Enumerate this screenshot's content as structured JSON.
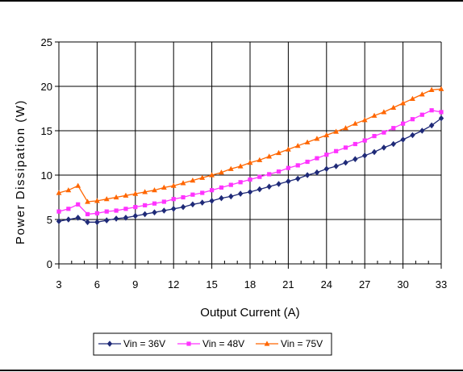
{
  "chart_data": {
    "type": "line",
    "xlabel": "Output Current (A)",
    "ylabel": "Power Dissipation (W)",
    "xlim": [
      3,
      33
    ],
    "ylim": [
      0,
      25
    ],
    "x_ticks": [
      3,
      6,
      9,
      12,
      15,
      18,
      21,
      24,
      27,
      30,
      33
    ],
    "y_ticks": [
      0,
      5,
      10,
      15,
      20,
      25
    ],
    "grid": true,
    "legend_position": "bottom",
    "x": [
      3,
      3.75,
      4.5,
      5.25,
      6,
      6.75,
      7.5,
      8.25,
      9,
      9.75,
      10.5,
      11.25,
      12,
      12.75,
      13.5,
      14.25,
      15,
      15.75,
      16.5,
      17.25,
      18,
      18.75,
      19.5,
      20.25,
      21,
      21.75,
      22.5,
      23.25,
      24,
      24.75,
      25.5,
      26.25,
      27,
      27.75,
      28.5,
      29.25,
      30,
      30.75,
      31.5,
      32.25,
      33
    ],
    "series": [
      {
        "name": "Vin = 36V",
        "color": "#1f2a78",
        "marker": "diamond",
        "values": [
          4.8,
          5.0,
          5.2,
          4.7,
          4.7,
          4.9,
          5.1,
          5.2,
          5.4,
          5.6,
          5.8,
          6.0,
          6.2,
          6.4,
          6.7,
          6.9,
          7.1,
          7.4,
          7.6,
          7.9,
          8.1,
          8.4,
          8.7,
          9.0,
          9.3,
          9.6,
          10.0,
          10.3,
          10.7,
          11.0,
          11.4,
          11.8,
          12.2,
          12.6,
          13.1,
          13.5,
          14.0,
          14.5,
          15.0,
          15.6,
          16.4
        ]
      },
      {
        "name": "Vin = 48V",
        "color": "#ff33ff",
        "marker": "square",
        "values": [
          5.9,
          6.2,
          6.7,
          5.6,
          5.7,
          5.9,
          6.0,
          6.2,
          6.4,
          6.6,
          6.8,
          7.0,
          7.3,
          7.5,
          7.8,
          8.0,
          8.3,
          8.6,
          8.9,
          9.2,
          9.5,
          9.8,
          10.1,
          10.4,
          10.8,
          11.1,
          11.5,
          11.9,
          12.3,
          12.7,
          13.1,
          13.5,
          13.9,
          14.4,
          14.8,
          15.3,
          15.8,
          16.3,
          16.8,
          17.3,
          17.1
        ]
      },
      {
        "name": "Vin = 75V",
        "color": "#ff6600",
        "marker": "triangle",
        "values": [
          8.0,
          8.3,
          8.8,
          7.0,
          7.1,
          7.3,
          7.5,
          7.7,
          7.9,
          8.1,
          8.3,
          8.6,
          8.8,
          9.1,
          9.4,
          9.7,
          10.0,
          10.3,
          10.7,
          11.0,
          11.4,
          11.7,
          12.1,
          12.5,
          12.9,
          13.3,
          13.7,
          14.1,
          14.5,
          14.9,
          15.3,
          15.8,
          16.2,
          16.7,
          17.1,
          17.6,
          18.1,
          18.6,
          19.1,
          19.6,
          19.7
        ]
      }
    ]
  }
}
